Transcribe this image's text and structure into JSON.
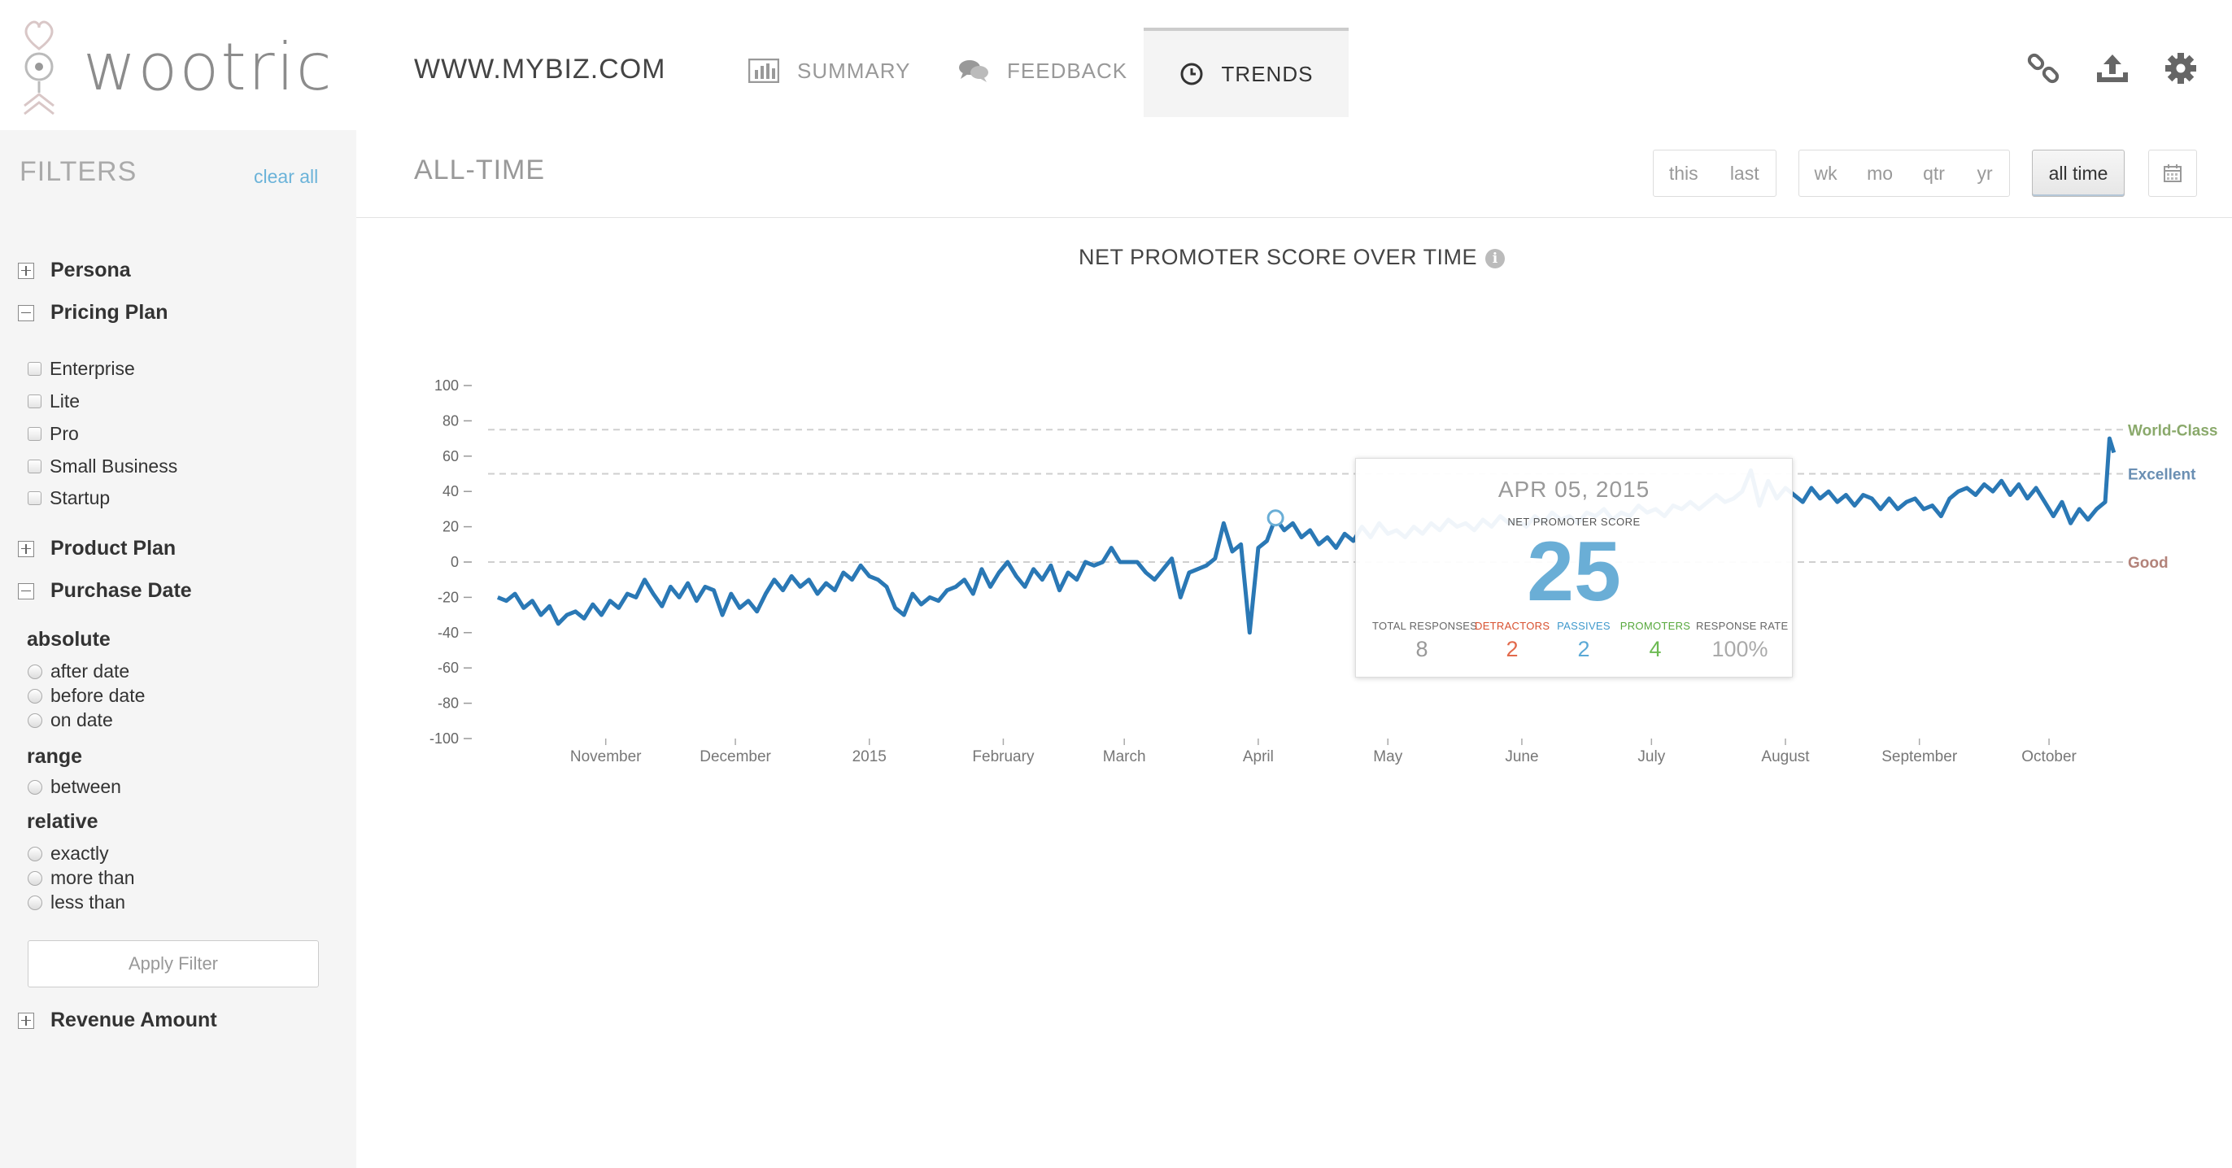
{
  "brand": {
    "name": "wootric"
  },
  "header": {
    "site_name": "WWW.MYBIZ.COM",
    "tabs": [
      {
        "label": "SUMMARY",
        "icon": "bar-chart-icon"
      },
      {
        "label": "FEEDBACK",
        "icon": "chat-bubbles-icon"
      },
      {
        "label": "TRENDS",
        "icon": "clock-icon",
        "active": true
      }
    ],
    "actions": [
      "link-icon",
      "upload-icon",
      "gear-icon"
    ]
  },
  "sidebar": {
    "title": "FILTERS",
    "clear_all": "clear all",
    "sections": {
      "persona": "Persona",
      "pricing_plan": "Pricing Plan",
      "product_plan": "Product Plan",
      "purchase_date": "Purchase Date",
      "revenue_amount": "Revenue Amount"
    },
    "pricing_options": [
      "Enterprise",
      "Lite",
      "Pro",
      "Small Business",
      "Startup"
    ],
    "purchase_date": {
      "absolute_label": "absolute",
      "absolute_options": [
        "after date",
        "before date",
        "on date"
      ],
      "range_label": "range",
      "range_options": [
        "between"
      ],
      "relative_label": "relative",
      "relative_options": [
        "exactly",
        "more than",
        "less than"
      ]
    },
    "apply_button": "Apply Filter"
  },
  "main": {
    "time_title": "ALL-TIME",
    "period_buttons": [
      "this",
      "last"
    ],
    "unit_buttons": [
      "wk",
      "mo",
      "qtr",
      "yr"
    ],
    "all_time_button": "all time",
    "calendar_icon": "calendar-icon"
  },
  "chart_data": {
    "type": "line",
    "title": "NET PROMOTER SCORE OVER TIME",
    "ylim": [
      -100,
      100
    ],
    "y_ticks": [
      100,
      80,
      60,
      40,
      20,
      0,
      -20,
      -40,
      -60,
      -80,
      -100
    ],
    "x_labels": [
      "November",
      "December",
      "2015",
      "February",
      "March",
      "April",
      "May",
      "June",
      "July",
      "August",
      "September",
      "October"
    ],
    "reference_lines": [
      {
        "label": "World-Class",
        "value": 75,
        "color": "#8aa96b"
      },
      {
        "label": "Excellent",
        "value": 50,
        "color": "#6a8fb3"
      },
      {
        "label": "Good",
        "value": 0,
        "color": "#b3837a"
      }
    ],
    "line_color": "#2a78b5",
    "x_start": "2014-10-07",
    "series": [
      {
        "points": [
          [
            "2014-10-07",
            -20
          ],
          [
            "2014-10-09",
            -22
          ],
          [
            "2014-10-11",
            -18
          ],
          [
            "2014-10-13",
            -26
          ],
          [
            "2014-10-15",
            -22
          ],
          [
            "2014-10-17",
            -30
          ],
          [
            "2014-10-19",
            -25
          ],
          [
            "2014-10-21",
            -35
          ],
          [
            "2014-10-23",
            -30
          ],
          [
            "2014-10-25",
            -28
          ],
          [
            "2014-10-27",
            -32
          ],
          [
            "2014-10-29",
            -24
          ],
          [
            "2014-10-31",
            -30
          ],
          [
            "2014-11-02",
            -22
          ],
          [
            "2014-11-04",
            -26
          ],
          [
            "2014-11-06",
            -18
          ],
          [
            "2014-11-08",
            -20
          ],
          [
            "2014-11-10",
            -10
          ],
          [
            "2014-11-12",
            -18
          ],
          [
            "2014-11-14",
            -25
          ],
          [
            "2014-11-16",
            -14
          ],
          [
            "2014-11-18",
            -20
          ],
          [
            "2014-11-20",
            -12
          ],
          [
            "2014-11-22",
            -22
          ],
          [
            "2014-11-24",
            -14
          ],
          [
            "2014-11-26",
            -16
          ],
          [
            "2014-11-28",
            -30
          ],
          [
            "2014-11-30",
            -18
          ],
          [
            "2014-12-02",
            -26
          ],
          [
            "2014-12-04",
            -22
          ],
          [
            "2014-12-06",
            -28
          ],
          [
            "2014-12-08",
            -18
          ],
          [
            "2014-12-10",
            -10
          ],
          [
            "2014-12-12",
            -16
          ],
          [
            "2014-12-14",
            -8
          ],
          [
            "2014-12-16",
            -14
          ],
          [
            "2014-12-18",
            -10
          ],
          [
            "2014-12-20",
            -18
          ],
          [
            "2014-12-22",
            -12
          ],
          [
            "2014-12-24",
            -16
          ],
          [
            "2014-12-26",
            -6
          ],
          [
            "2014-12-28",
            -10
          ],
          [
            "2014-12-30",
            -2
          ],
          [
            "2015-01-01",
            -8
          ],
          [
            "2015-01-03",
            -10
          ],
          [
            "2015-01-05",
            -14
          ],
          [
            "2015-01-07",
            -26
          ],
          [
            "2015-01-09",
            -30
          ],
          [
            "2015-01-11",
            -18
          ],
          [
            "2015-01-13",
            -24
          ],
          [
            "2015-01-15",
            -20
          ],
          [
            "2015-01-17",
            -22
          ],
          [
            "2015-01-19",
            -16
          ],
          [
            "2015-01-21",
            -14
          ],
          [
            "2015-01-23",
            -10
          ],
          [
            "2015-01-25",
            -18
          ],
          [
            "2015-01-27",
            -4
          ],
          [
            "2015-01-29",
            -14
          ],
          [
            "2015-01-31",
            -6
          ],
          [
            "2015-02-02",
            0
          ],
          [
            "2015-02-04",
            -8
          ],
          [
            "2015-02-06",
            -14
          ],
          [
            "2015-02-08",
            -4
          ],
          [
            "2015-02-10",
            -10
          ],
          [
            "2015-02-12",
            -2
          ],
          [
            "2015-02-14",
            -16
          ],
          [
            "2015-02-16",
            -6
          ],
          [
            "2015-02-18",
            -10
          ],
          [
            "2015-02-20",
            0
          ],
          [
            "2015-02-22",
            -2
          ],
          [
            "2015-02-24",
            0
          ],
          [
            "2015-02-26",
            8
          ],
          [
            "2015-02-28",
            0
          ],
          [
            "2015-03-02",
            0
          ],
          [
            "2015-03-04",
            0
          ],
          [
            "2015-03-06",
            -6
          ],
          [
            "2015-03-08",
            -10
          ],
          [
            "2015-03-10",
            -4
          ],
          [
            "2015-03-12",
            2
          ],
          [
            "2015-03-14",
            -20
          ],
          [
            "2015-03-16",
            -6
          ],
          [
            "2015-03-18",
            -4
          ],
          [
            "2015-03-20",
            -2
          ],
          [
            "2015-03-22",
            2
          ],
          [
            "2015-03-24",
            22
          ],
          [
            "2015-03-26",
            6
          ],
          [
            "2015-03-28",
            10
          ],
          [
            "2015-03-30",
            -40
          ],
          [
            "2015-04-01",
            8
          ],
          [
            "2015-04-03",
            12
          ],
          [
            "2015-04-05",
            25
          ],
          [
            "2015-04-07",
            18
          ],
          [
            "2015-04-09",
            22
          ],
          [
            "2015-04-11",
            14
          ],
          [
            "2015-04-13",
            18
          ],
          [
            "2015-04-15",
            10
          ],
          [
            "2015-04-17",
            14
          ],
          [
            "2015-04-19",
            8
          ],
          [
            "2015-04-21",
            16
          ],
          [
            "2015-04-23",
            12
          ],
          [
            "2015-04-25",
            20
          ],
          [
            "2015-04-27",
            14
          ],
          [
            "2015-04-29",
            22
          ],
          [
            "2015-05-01",
            16
          ],
          [
            "2015-05-03",
            18
          ],
          [
            "2015-05-05",
            14
          ],
          [
            "2015-05-07",
            20
          ],
          [
            "2015-05-09",
            16
          ],
          [
            "2015-05-11",
            22
          ],
          [
            "2015-05-13",
            18
          ],
          [
            "2015-05-15",
            24
          ],
          [
            "2015-05-17",
            20
          ],
          [
            "2015-05-19",
            22
          ],
          [
            "2015-05-21",
            18
          ],
          [
            "2015-05-23",
            24
          ],
          [
            "2015-05-25",
            20
          ],
          [
            "2015-05-27",
            26
          ],
          [
            "2015-05-29",
            22
          ],
          [
            "2015-05-31",
            24
          ],
          [
            "2015-06-02",
            20
          ],
          [
            "2015-06-04",
            26
          ],
          [
            "2015-06-06",
            22
          ],
          [
            "2015-06-08",
            28
          ],
          [
            "2015-06-10",
            24
          ],
          [
            "2015-06-12",
            26
          ],
          [
            "2015-06-14",
            22
          ],
          [
            "2015-06-16",
            28
          ],
          [
            "2015-06-18",
            26
          ],
          [
            "2015-06-20",
            30
          ],
          [
            "2015-06-22",
            24
          ],
          [
            "2015-06-24",
            28
          ],
          [
            "2015-06-26",
            26
          ],
          [
            "2015-06-28",
            32
          ],
          [
            "2015-06-30",
            28
          ],
          [
            "2015-07-02",
            30
          ],
          [
            "2015-07-04",
            26
          ],
          [
            "2015-07-06",
            32
          ],
          [
            "2015-07-08",
            30
          ],
          [
            "2015-07-10",
            34
          ],
          [
            "2015-07-12",
            30
          ],
          [
            "2015-07-14",
            34
          ],
          [
            "2015-07-16",
            38
          ],
          [
            "2015-07-18",
            34
          ],
          [
            "2015-07-20",
            36
          ],
          [
            "2015-07-22",
            40
          ],
          [
            "2015-07-24",
            52
          ],
          [
            "2015-07-26",
            32
          ],
          [
            "2015-07-28",
            46
          ],
          [
            "2015-07-30",
            36
          ],
          [
            "2015-08-01",
            42
          ],
          [
            "2015-08-03",
            38
          ],
          [
            "2015-08-05",
            34
          ],
          [
            "2015-08-07",
            42
          ],
          [
            "2015-08-09",
            36
          ],
          [
            "2015-08-11",
            40
          ],
          [
            "2015-08-13",
            34
          ],
          [
            "2015-08-15",
            38
          ],
          [
            "2015-08-17",
            32
          ],
          [
            "2015-08-19",
            38
          ],
          [
            "2015-08-21",
            36
          ],
          [
            "2015-08-23",
            30
          ],
          [
            "2015-08-25",
            36
          ],
          [
            "2015-08-27",
            30
          ],
          [
            "2015-08-29",
            34
          ],
          [
            "2015-08-31",
            36
          ],
          [
            "2015-09-02",
            30
          ],
          [
            "2015-09-04",
            32
          ],
          [
            "2015-09-06",
            26
          ],
          [
            "2015-09-08",
            36
          ],
          [
            "2015-09-10",
            40
          ],
          [
            "2015-09-12",
            42
          ],
          [
            "2015-09-14",
            38
          ],
          [
            "2015-09-16",
            44
          ],
          [
            "2015-09-18",
            40
          ],
          [
            "2015-09-20",
            46
          ],
          [
            "2015-09-22",
            38
          ],
          [
            "2015-09-24",
            44
          ],
          [
            "2015-09-26",
            36
          ],
          [
            "2015-09-28",
            42
          ],
          [
            "2015-09-30",
            34
          ],
          [
            "2015-10-02",
            26
          ],
          [
            "2015-10-04",
            34
          ],
          [
            "2015-10-06",
            22
          ],
          [
            "2015-10-08",
            30
          ],
          [
            "2015-10-10",
            24
          ],
          [
            "2015-10-12",
            30
          ],
          [
            "2015-10-14",
            34
          ],
          [
            "2015-10-15",
            70
          ],
          [
            "2015-10-16",
            62
          ]
        ]
      }
    ],
    "highlight": {
      "date_label": "APR 05, 2015",
      "date": "2015-04-05",
      "score_label": "NET PROMOTER SCORE",
      "score": 25,
      "stats": [
        {
          "label": "TOTAL RESPONSES",
          "value": "8",
          "color": "#999999"
        },
        {
          "label": "DETRACTORS",
          "value": "2",
          "color": "#e2694b"
        },
        {
          "label": "PASSIVES",
          "value": "2",
          "color": "#5aa9d6"
        },
        {
          "label": "PROMOTERS",
          "value": "4",
          "color": "#6cba52"
        },
        {
          "label": "RESPONSE RATE",
          "value": "100%",
          "color": "#aaaaaa"
        }
      ]
    }
  }
}
